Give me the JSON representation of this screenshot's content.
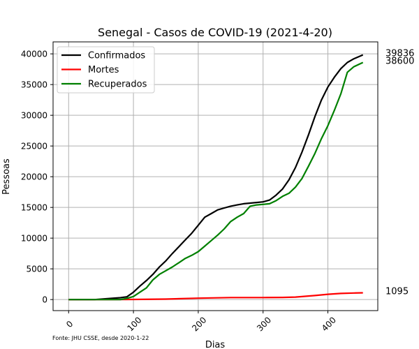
{
  "chart_data": {
    "type": "line",
    "title": "Senegal - Casos de COVID-19 (2021-4-20)",
    "xlabel": "Dias",
    "ylabel": "Pessoas",
    "xlim": [
      -24,
      477
    ],
    "ylim": [
      -1800,
      41950
    ],
    "xticks": [
      0,
      100,
      200,
      300,
      400
    ],
    "yticks": [
      0,
      5000,
      10000,
      15000,
      20000,
      25000,
      30000,
      35000,
      40000
    ],
    "grid": true,
    "legend_position": "top-left",
    "footnote": "Fonte: JHU CSSE, desde 2020-1-22",
    "series": [
      {
        "name": "Confirmados",
        "color": "#000000",
        "x": [
          0,
          40,
          60,
          80,
          90,
          100,
          110,
          120,
          130,
          140,
          150,
          160,
          170,
          180,
          190,
          200,
          210,
          220,
          230,
          240,
          250,
          260,
          270,
          280,
          290,
          300,
          310,
          320,
          330,
          340,
          350,
          360,
          370,
          380,
          390,
          400,
          410,
          420,
          430,
          440,
          454
        ],
        "y": [
          0,
          0,
          150,
          300,
          450,
          1200,
          2200,
          3100,
          4100,
          5300,
          6300,
          7500,
          8600,
          9700,
          10800,
          12100,
          13400,
          14000,
          14600,
          14900,
          15200,
          15400,
          15600,
          15700,
          15800,
          15900,
          16200,
          17000,
          18000,
          19500,
          21500,
          24000,
          26800,
          29800,
          32500,
          34600,
          36200,
          37600,
          38600,
          39200,
          39836
        ],
        "end_label": "39836"
      },
      {
        "name": "Mortes",
        "color": "#ff0000",
        "x": [
          0,
          60,
          100,
          150,
          200,
          250,
          300,
          330,
          350,
          380,
          400,
          420,
          440,
          454
        ],
        "y": [
          0,
          0,
          20,
          80,
          220,
          320,
          330,
          350,
          400,
          650,
          860,
          1000,
          1060,
          1095
        ],
        "end_label": "1095"
      },
      {
        "name": "Recuperados",
        "color": "#008000",
        "x": [
          0,
          80,
          90,
          100,
          110,
          120,
          130,
          140,
          150,
          160,
          170,
          180,
          190,
          200,
          210,
          220,
          230,
          240,
          250,
          260,
          270,
          280,
          290,
          300,
          310,
          320,
          330,
          340,
          350,
          360,
          370,
          380,
          390,
          400,
          410,
          420,
          430,
          440,
          454
        ],
        "y": [
          0,
          0,
          200,
          500,
          1200,
          1900,
          3200,
          4100,
          4700,
          5300,
          6000,
          6700,
          7200,
          7800,
          8700,
          9600,
          10500,
          11500,
          12700,
          13400,
          14000,
          15200,
          15400,
          15500,
          15600,
          16100,
          16800,
          17300,
          18300,
          19700,
          21700,
          23800,
          26200,
          28300,
          30800,
          33500,
          37000,
          37900,
          38600
        ],
        "end_label": "38600"
      }
    ]
  }
}
